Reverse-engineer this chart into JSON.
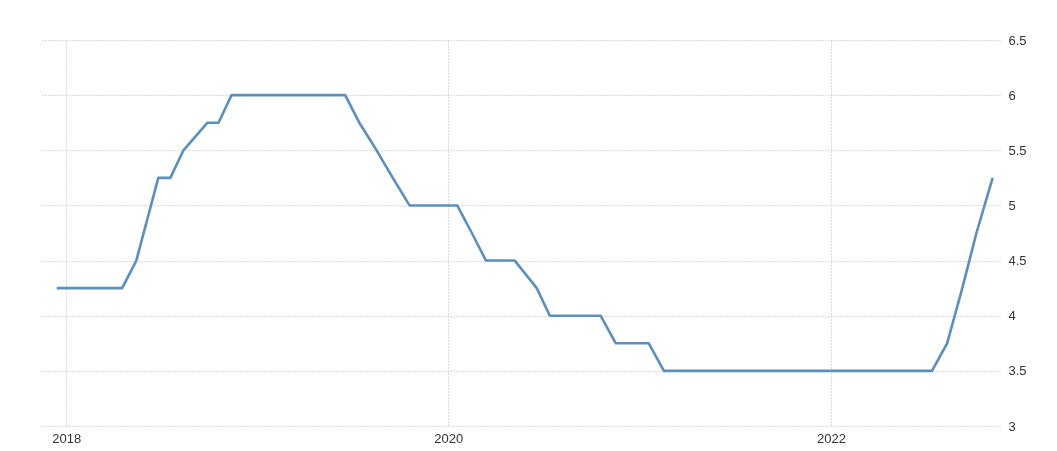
{
  "chart_data": {
    "type": "line",
    "x": [
      "2017-12-14",
      "2018-04-18",
      "2018-05-15",
      "2018-06-26",
      "2018-07-19",
      "2018-08-13",
      "2018-09-28",
      "2018-10-19",
      "2018-11-13",
      "2019-06-18",
      "2019-07-15",
      "2019-08-17",
      "2019-09-17",
      "2019-10-19",
      "2020-01-18",
      "2020-02-15",
      "2020-03-13",
      "2020-05-07",
      "2020-06-18",
      "2020-07-13",
      "2020-10-18",
      "2020-11-16",
      "2021-01-18",
      "2021-02-16",
      "2022-07-13",
      "2022-08-11",
      "2022-09-09",
      "2022-10-06",
      "2022-11-06"
    ],
    "series": [
      {
        "color": "#5b8fc0",
        "values": [
          4.25,
          4.25,
          4.5,
          5.25,
          5.25,
          5.5,
          5.75,
          5.75,
          6,
          6,
          5.75,
          5.5,
          5.25,
          5,
          5,
          4.75,
          4.5,
          4.5,
          4.25,
          4,
          4,
          3.75,
          3.75,
          3.5,
          3.5,
          3.75,
          4.25,
          4.75,
          5.25
        ]
      }
    ],
    "xlim": [
      "2017-11-12",
      "2022-11-20"
    ],
    "xticks": [
      "2018",
      "2020",
      "2022"
    ],
    "ylim": [
      3,
      6.5
    ],
    "yticks": [
      3,
      3.5,
      4,
      4.5,
      5,
      5.5,
      6,
      6.5
    ],
    "grid": true,
    "marker": "none",
    "line_style": "solid"
  }
}
